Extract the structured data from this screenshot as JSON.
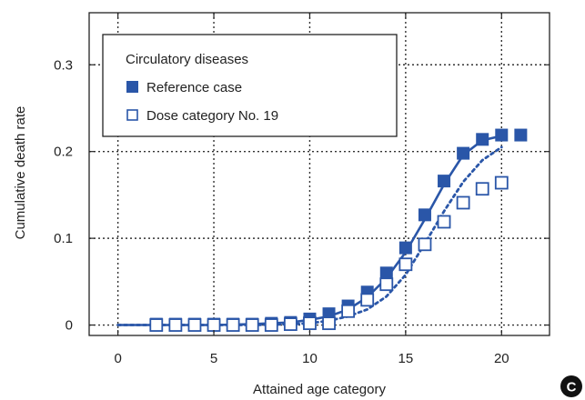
{
  "chart_data": {
    "type": "line",
    "title": "",
    "xlabel": "Attained age category",
    "ylabel": "Cumulative death rate",
    "xlim": [
      -1.5,
      22.5
    ],
    "ylim": [
      -0.012,
      0.36
    ],
    "x_ticks": [
      0,
      5,
      10,
      15,
      20
    ],
    "y_ticks": [
      0,
      0.1,
      0.2,
      0.3
    ],
    "x_tick_labels": [
      "0",
      "5",
      "10",
      "15",
      "20"
    ],
    "y_tick_labels": [
      "0",
      "0.1",
      "0.2",
      "0.3"
    ],
    "grid": true,
    "legend_title": "Circulatory diseases",
    "legend_position": "top-left",
    "series": [
      {
        "name": "Reference case",
        "marker": "filled-square",
        "color": "#2a56a8",
        "x": [
          2,
          3,
          4,
          5,
          6,
          7,
          8,
          9,
          10,
          11,
          12,
          13,
          14,
          15,
          16,
          17,
          18,
          19,
          20,
          21
        ],
        "y": [
          0.001,
          0.001,
          0.001,
          0.001,
          0.001,
          0.001,
          0.002,
          0.003,
          0.007,
          0.013,
          0.022,
          0.038,
          0.06,
          0.089,
          0.127,
          0.166,
          0.198,
          0.214,
          0.219,
          0.219
        ],
        "curve_x": [
          0,
          1,
          2,
          3,
          4,
          5,
          6,
          7,
          8,
          9,
          10,
          11,
          12,
          13,
          14,
          15,
          16,
          17,
          18,
          19,
          20
        ],
        "curve_y": [
          0,
          0,
          0,
          0,
          0,
          0,
          0.0005,
          0.001,
          0.002,
          0.003,
          0.006,
          0.01,
          0.018,
          0.032,
          0.054,
          0.084,
          0.122,
          0.162,
          0.196,
          0.213,
          0.218
        ]
      },
      {
        "name": "Dose category No. 19",
        "marker": "open-square",
        "color": "#2a56a8",
        "x": [
          2,
          3,
          4,
          5,
          6,
          7,
          8,
          9,
          10,
          11,
          12,
          13,
          14,
          15,
          16,
          17,
          18,
          19,
          20
        ],
        "y": [
          0,
          0,
          0,
          0,
          0,
          0,
          0,
          0.001,
          0.002,
          0.002,
          0.016,
          0.029,
          0.047,
          0.07,
          0.093,
          0.119,
          0.141,
          0.157,
          0.164
        ],
        "curve_x": [
          0,
          1,
          2,
          3,
          4,
          5,
          6,
          7,
          8,
          9,
          10,
          11,
          12,
          13,
          14,
          15,
          16,
          17,
          18,
          19,
          20
        ],
        "curve_y": [
          0,
          0,
          0,
          0,
          0,
          0,
          0,
          0,
          0.0005,
          0.001,
          0.002,
          0.005,
          0.01,
          0.018,
          0.033,
          0.058,
          0.094,
          0.131,
          0.165,
          0.19,
          0.205
        ]
      }
    ],
    "annotation": "C",
    "annotation_color": "#111111"
  }
}
